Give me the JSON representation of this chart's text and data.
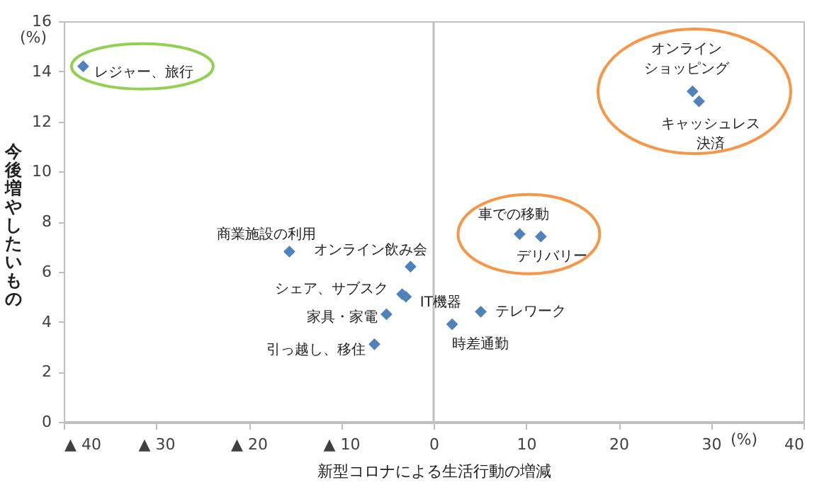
{
  "chart_data": {
    "type": "scatter",
    "xlabel": "新型コロナによる生活行動の増減",
    "ylabel": "今後増やしたいもの",
    "x": [
      -37.9,
      -15.6,
      -2.5,
      -3.4,
      -3.0,
      -5.1,
      -6.4,
      5.1,
      2.0,
      9.3,
      11.6,
      28.0,
      28.7
    ],
    "series": [
      {
        "color": "#4f81bd",
        "values": [
          14.2,
          6.8,
          6.2,
          5.1,
          5.0,
          4.3,
          3.1,
          4.4,
          3.9,
          7.5,
          7.4,
          13.2,
          12.8
        ]
      }
    ],
    "marker": "diamond",
    "grid": false,
    "xlim": [
      -40,
      40
    ],
    "xticks": [
      {
        "value": -40,
        "label": "▲ 40"
      },
      {
        "value": -30,
        "label": "▲ 30"
      },
      {
        "value": -20,
        "label": "▲ 20"
      },
      {
        "value": -10,
        "label": "▲ 10"
      },
      0,
      10,
      20,
      30,
      40
    ],
    "ylim": [
      0,
      16
    ],
    "yticks": [
      0,
      2,
      4,
      6,
      8,
      10,
      12,
      14,
      16
    ],
    "ref_lines": [
      {
        "axis": "x",
        "value": 0,
        "color": "#bfbfbf"
      }
    ],
    "annotations": [
      {
        "text": "レジャー、旅行",
        "x": -37.9,
        "y": 14.2
      },
      {
        "text": "商業施設の利用",
        "x": -15.6,
        "y": 6.8
      },
      {
        "text": "オンライン飲み会",
        "x": -2.5,
        "y": 6.2
      },
      {
        "text": "シェア、サブスク",
        "x": -3.4,
        "y": 5.1
      },
      {
        "text": "IT機器",
        "x": -3.0,
        "y": 5.0
      },
      {
        "text": "家具・家電",
        "x": -5.1,
        "y": 4.3
      },
      {
        "text": "引っ越し、移住",
        "x": -6.4,
        "y": 3.1
      },
      {
        "text": "テレワーク",
        "x": 5.1,
        "y": 4.4
      },
      {
        "text": "時差通勤",
        "x": 2.0,
        "y": 3.9
      },
      {
        "text": "車での移動",
        "x": 9.3,
        "y": 7.5
      },
      {
        "text": "デリバリー",
        "x": 11.6,
        "y": 7.4
      },
      {
        "text": "オンラインショッピング",
        "x": 28.0,
        "y": 13.2
      },
      {
        "text": "キャッシュレス決済",
        "x": 28.7,
        "y": 12.8
      },
      "(%)",
      "(%)"
    ]
  }
}
